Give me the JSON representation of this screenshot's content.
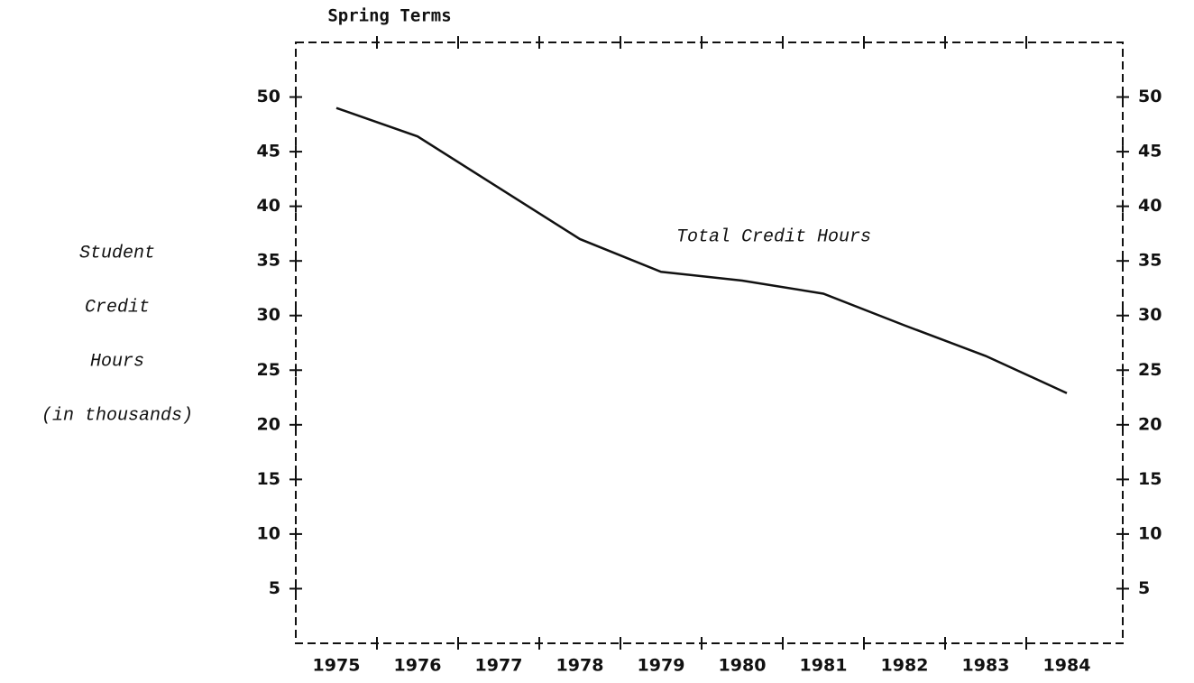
{
  "chart_data": {
    "type": "line",
    "title": "Spring Terms",
    "y_label": [
      "Student",
      "Credit",
      "Hours",
      "(in thousands)"
    ],
    "annotation": "Total Credit Hours",
    "categories": [
      "1975",
      "1976",
      "1977",
      "1978",
      "1979",
      "1980",
      "1981",
      "1982",
      "1983",
      "1984"
    ],
    "series": [
      {
        "name": "Total Credit Hours",
        "color": "#111111",
        "values": [
          49.0,
          46.4,
          41.7,
          37.0,
          34.0,
          33.2,
          32.0,
          29.1,
          26.3,
          22.9
        ]
      }
    ],
    "ylim": [
      0,
      55
    ],
    "yticks": [
      5,
      10,
      15,
      20,
      25,
      30,
      35,
      40,
      45,
      50
    ],
    "grid": false
  }
}
